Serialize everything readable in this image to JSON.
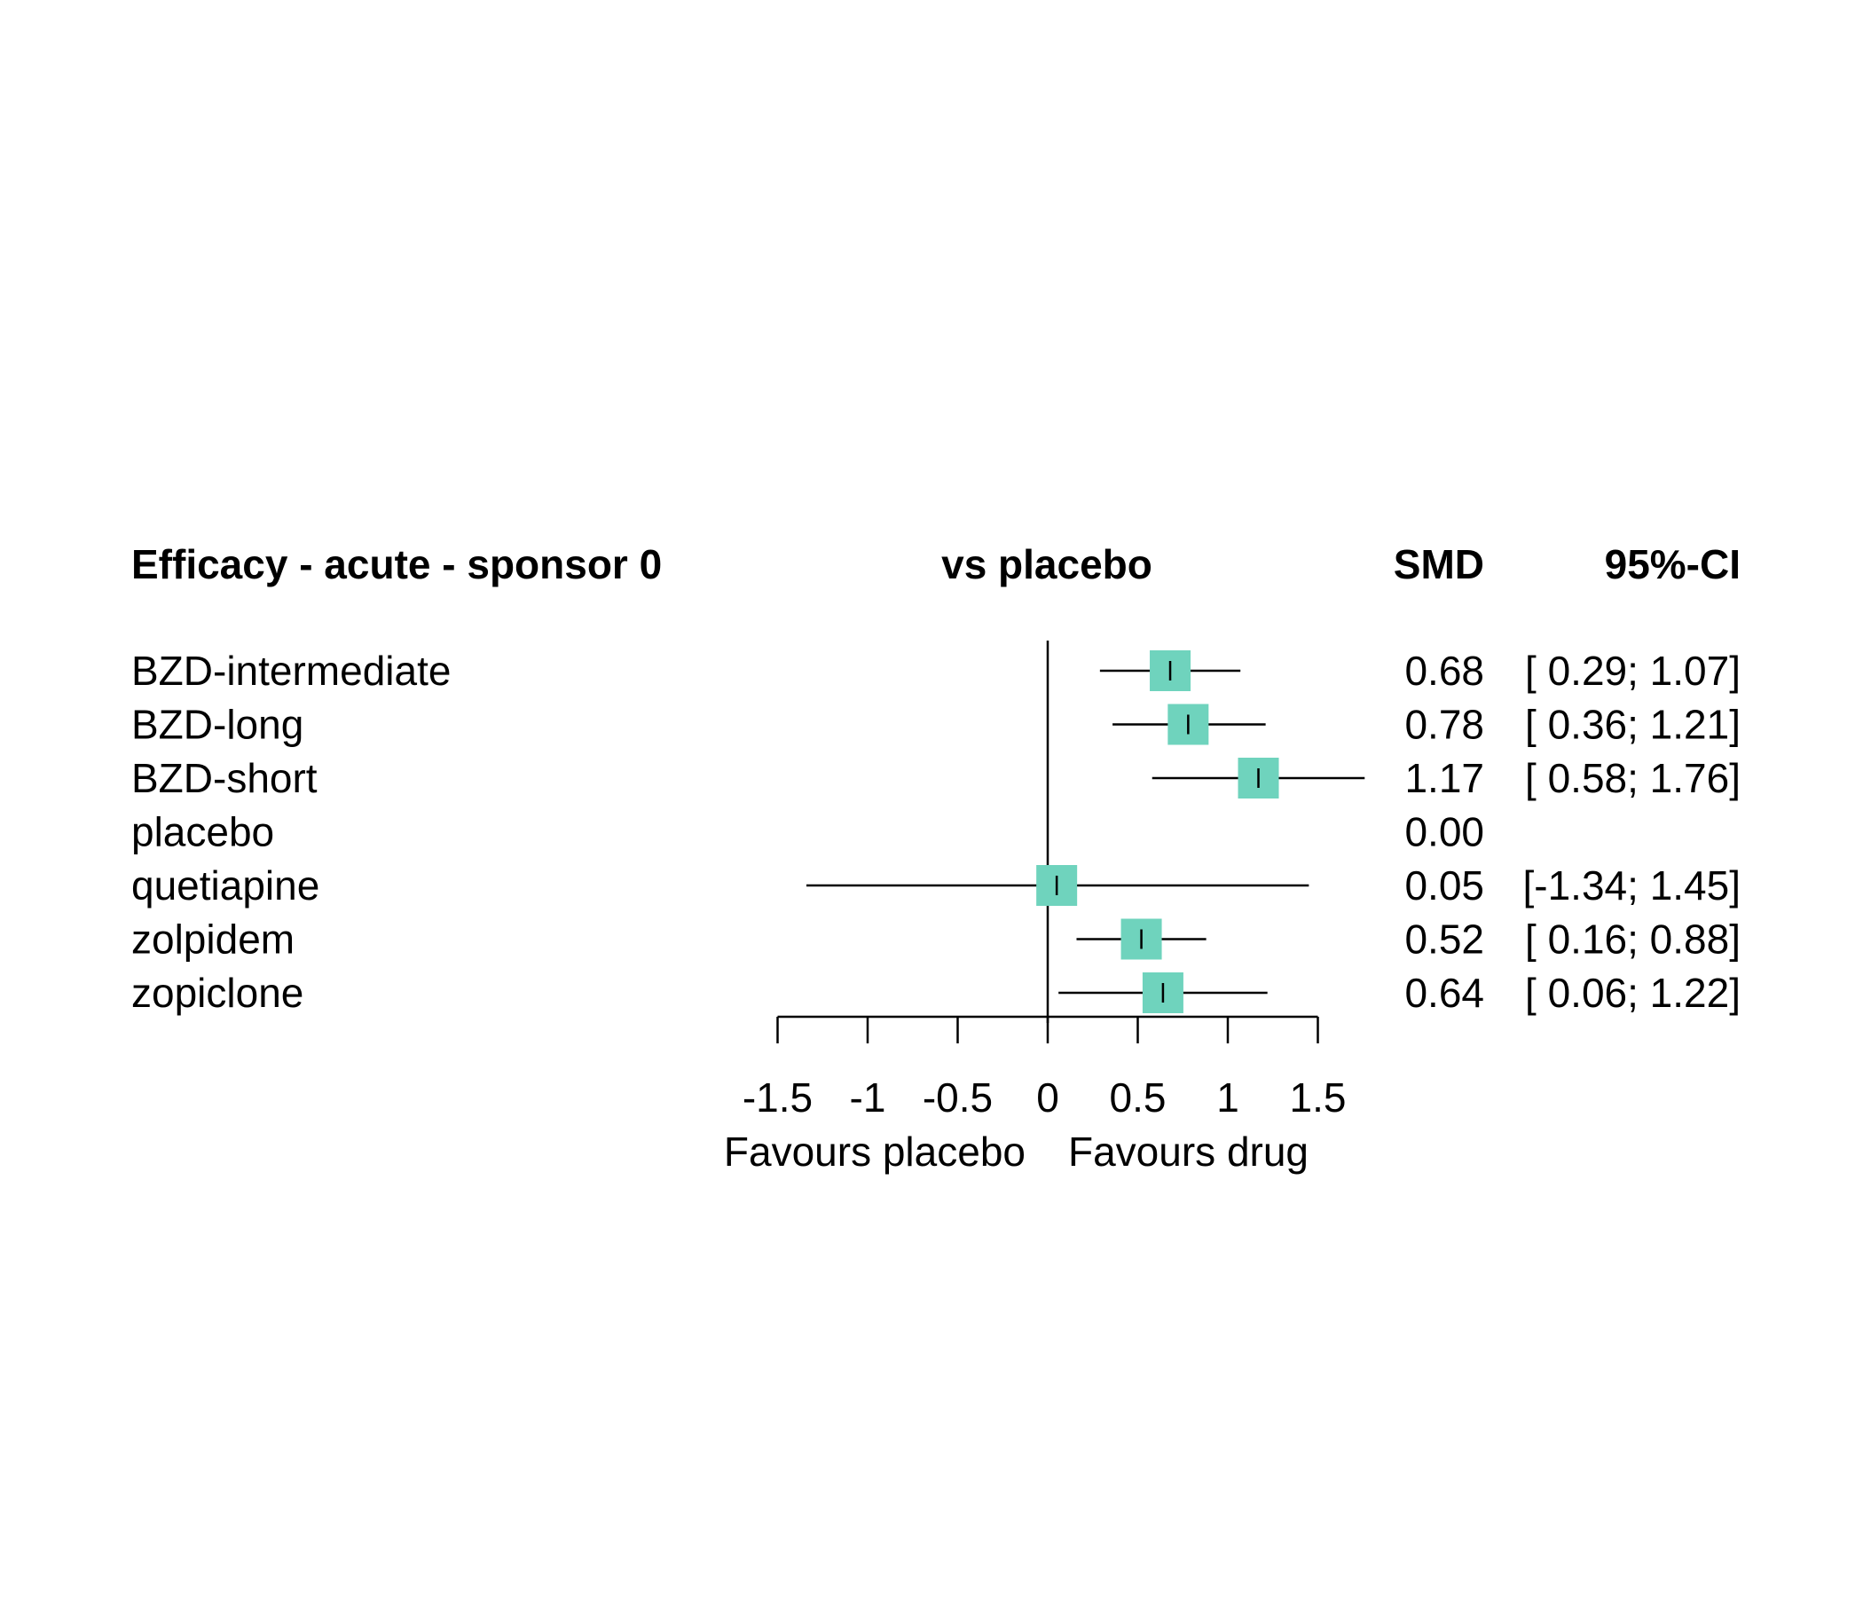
{
  "chart_data": {
    "type": "forest",
    "headers": {
      "title": "Efficacy - acute - sponsor 0",
      "comparison": "vs placebo",
      "estimate": "SMD",
      "ci": "95%-CI"
    },
    "rows": [
      {
        "label": "BZD-intermediate",
        "smd": 0.68,
        "lower": 0.29,
        "upper": 1.07,
        "smd_text": "0.68",
        "ci_text": "[ 0.29; 1.07]"
      },
      {
        "label": "BZD-long",
        "smd": 0.78,
        "lower": 0.36,
        "upper": 1.21,
        "smd_text": "0.78",
        "ci_text": "[ 0.36; 1.21]"
      },
      {
        "label": "BZD-short",
        "smd": 1.17,
        "lower": 0.58,
        "upper": 1.76,
        "smd_text": "1.17",
        "ci_text": "[ 0.58; 1.76]"
      },
      {
        "label": "placebo",
        "smd": 0.0,
        "lower": null,
        "upper": null,
        "smd_text": "0.00",
        "ci_text": ""
      },
      {
        "label": "quetiapine",
        "smd": 0.05,
        "lower": -1.34,
        "upper": 1.45,
        "smd_text": "0.05",
        "ci_text": "[-1.34; 1.45]"
      },
      {
        "label": "zolpidem",
        "smd": 0.52,
        "lower": 0.16,
        "upper": 0.88,
        "smd_text": "0.52",
        "ci_text": "[ 0.16; 0.88]"
      },
      {
        "label": "zopiclone",
        "smd": 0.64,
        "lower": 0.06,
        "upper": 1.22,
        "smd_text": "0.64",
        "ci_text": "[ 0.06; 1.22]"
      }
    ],
    "x_axis": {
      "ticks": [
        -1.5,
        -1,
        -0.5,
        0,
        0.5,
        1,
        1.5
      ],
      "tick_labels": [
        "-1.5",
        "-1",
        "-0.5",
        "0",
        "0.5",
        "1",
        "1.5"
      ],
      "range": [
        -1.5,
        1.5
      ],
      "left_label": "Favours placebo",
      "right_label": "Favours drug"
    },
    "reference_line": 0,
    "colors": {
      "box": "#6fd3bd",
      "line": "#000000"
    }
  }
}
